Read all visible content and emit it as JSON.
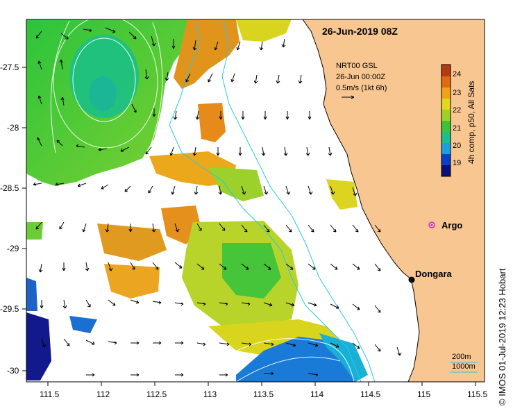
{
  "title": "26-Jun-2019 08Z",
  "product": {
    "line1": "NRT00 GSL",
    "line2": "26-Jun 00:00Z",
    "line3": "0.5m/s (1kt 6h)"
  },
  "colorbar": {
    "label": "4h comp, p50, All Sats",
    "ticks": [
      "19",
      "20",
      "21",
      "22",
      "23",
      "24"
    ],
    "colors": [
      "#0b0f7a",
      "#0a3fc8",
      "#1aa0e0",
      "#19c08a",
      "#3bc43a",
      "#9ed02a",
      "#e2d81e",
      "#eda21a",
      "#df6a16",
      "#b33a12"
    ]
  },
  "axes": {
    "x_ticks": [
      "111.5",
      "112",
      "112.5",
      "113",
      "113.5",
      "114",
      "114.5",
      "115",
      "115.5"
    ],
    "y_ticks": [
      "-27.5",
      "-28",
      "-28.5",
      "-29",
      "-29.5",
      "-30"
    ]
  },
  "places": [
    {
      "name": "Argo",
      "marker": "argo-float"
    },
    {
      "name": "Dongara",
      "marker": "town"
    }
  ],
  "depth_legend": {
    "c1": "200m",
    "c2": "1000m"
  },
  "credit": "© IMOS 01-Jul-2019 12:23 Hobart",
  "colors": {
    "land": "#f8c690",
    "ocean": "#ffffff",
    "bathy": "#28c8e0",
    "argo": "#d020e0"
  }
}
